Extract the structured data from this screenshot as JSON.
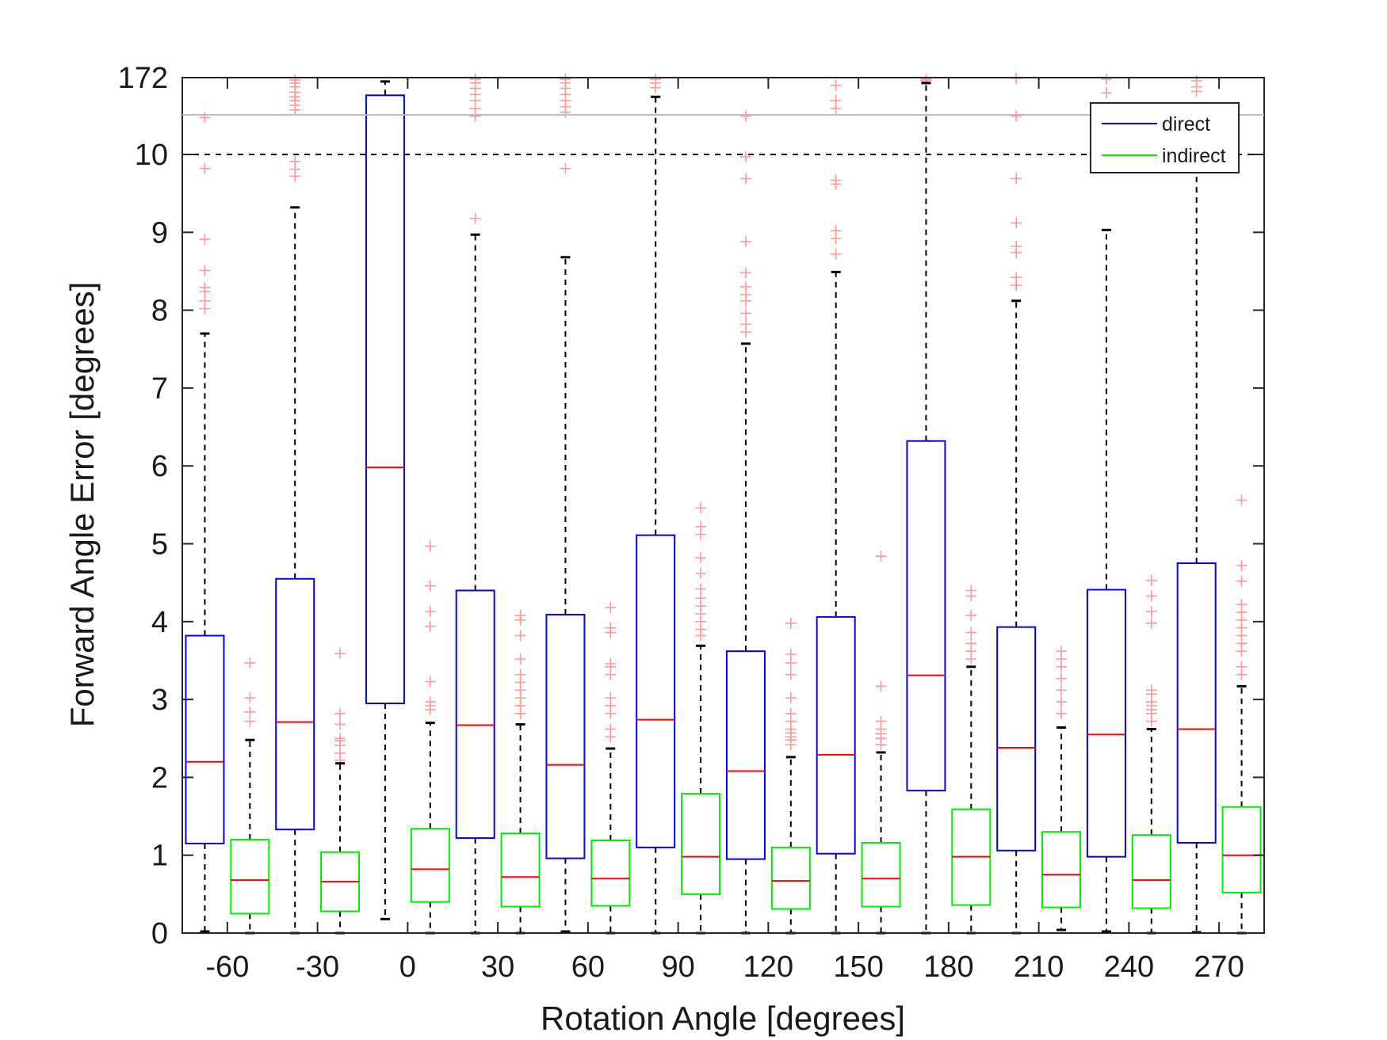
{
  "chart_data": {
    "type": "box",
    "xlabel": "Rotation Angle [degrees]",
    "ylabel": "Forward Angle Error [degrees]",
    "x_categories": [
      "-60",
      "-30",
      "0",
      "30",
      "60",
      "90",
      "120",
      "150",
      "180",
      "210",
      "240",
      "270"
    ],
    "y_ticks": [
      "0",
      "1",
      "2",
      "3",
      "4",
      "5",
      "6",
      "7",
      "8",
      "9",
      "10",
      "172"
    ],
    "y_scale_note": "linear 0-10, compressed break region 10-172",
    "threshold_line": 10,
    "legend": {
      "position": "top-right",
      "entries": [
        "direct",
        "indirect"
      ]
    },
    "colors": {
      "direct": "#0000ff",
      "indirect": "#00ee00",
      "median": "#ff0000",
      "whisker": "#000000",
      "outlier": "#ff9999",
      "break_line": "#bdbdbd"
    },
    "series": [
      {
        "name": "direct",
        "stats": [
          {
            "q1": 1.15,
            "median": 2.2,
            "q3": 3.82,
            "whisker_low": 0.02,
            "whisker_high": 7.7
          },
          {
            "q1": 1.33,
            "median": 2.71,
            "q3": 4.55,
            "whisker_low": 0.0,
            "whisker_high": 9.32
          },
          {
            "q1": 2.95,
            "median": 5.98,
            "q3": 10.77,
            "whisker_low": 0.18,
            "whisker_high": 10.95
          },
          {
            "q1": 1.22,
            "median": 2.67,
            "q3": 4.4,
            "whisker_low": 0.0,
            "whisker_high": 8.97
          },
          {
            "q1": 0.96,
            "median": 2.16,
            "q3": 4.09,
            "whisker_low": 0.02,
            "whisker_high": 8.68
          },
          {
            "q1": 1.1,
            "median": 2.74,
            "q3": 5.11,
            "whisker_low": 0.0,
            "whisker_high": 10.75
          },
          {
            "q1": 0.95,
            "median": 2.08,
            "q3": 3.62,
            "whisker_low": 0.0,
            "whisker_high": 7.57
          },
          {
            "q1": 1.02,
            "median": 2.29,
            "q3": 4.06,
            "whisker_low": 0.0,
            "whisker_high": 8.49
          },
          {
            "q1": 1.83,
            "median": 3.31,
            "q3": 6.32,
            "whisker_low": 0.0,
            "whisker_high": 10.93
          },
          {
            "q1": 1.06,
            "median": 2.38,
            "q3": 3.93,
            "whisker_low": 0.0,
            "whisker_high": 8.12
          },
          {
            "q1": 0.98,
            "median": 2.55,
            "q3": 4.41,
            "whisker_low": 0.02,
            "whisker_high": 9.03
          },
          {
            "q1": 1.16,
            "median": 2.62,
            "q3": 4.75,
            "whisker_low": 0.01,
            "whisker_high": 10.0
          }
        ]
      },
      {
        "name": "indirect",
        "stats": [
          {
            "q1": 0.25,
            "median": 0.68,
            "q3": 1.2,
            "whisker_low": 0.0,
            "whisker_high": 2.48
          },
          {
            "q1": 0.28,
            "median": 0.66,
            "q3": 1.04,
            "whisker_low": 0.0,
            "whisker_high": 2.18
          },
          {
            "q1": 0.4,
            "median": 0.82,
            "q3": 1.34,
            "whisker_low": 0.0,
            "whisker_high": 2.7
          },
          {
            "q1": 0.34,
            "median": 0.72,
            "q3": 1.28,
            "whisker_low": 0.0,
            "whisker_high": 2.68
          },
          {
            "q1": 0.35,
            "median": 0.7,
            "q3": 1.19,
            "whisker_low": 0.0,
            "whisker_high": 2.37
          },
          {
            "q1": 0.5,
            "median": 0.98,
            "q3": 1.79,
            "whisker_low": 0.0,
            "whisker_high": 3.69
          },
          {
            "q1": 0.31,
            "median": 0.67,
            "q3": 1.1,
            "whisker_low": 0.0,
            "whisker_high": 2.26
          },
          {
            "q1": 0.34,
            "median": 0.7,
            "q3": 1.16,
            "whisker_low": 0.0,
            "whisker_high": 2.32
          },
          {
            "q1": 0.36,
            "median": 0.98,
            "q3": 1.59,
            "whisker_low": 0.0,
            "whisker_high": 3.42
          },
          {
            "q1": 0.33,
            "median": 0.75,
            "q3": 1.3,
            "whisker_low": 0.04,
            "whisker_high": 2.64
          },
          {
            "q1": 0.32,
            "median": 0.68,
            "q3": 1.26,
            "whisker_low": 0.0,
            "whisker_high": 2.62
          },
          {
            "q1": 0.52,
            "median": 1.0,
            "q3": 1.62,
            "whisker_low": 0.0,
            "whisker_high": 3.17
          }
        ]
      }
    ],
    "outliers": [
      {
        "series": "direct",
        "category": "-60",
        "values": [
          8.02,
          8.12,
          8.24,
          8.29,
          8.51,
          8.91,
          9.82,
          10.48
        ]
      },
      {
        "series": "indirect",
        "category": "-60",
        "values": [
          2.72,
          2.84,
          3.02,
          3.47
        ]
      },
      {
        "series": "direct",
        "category": "-30",
        "values": [
          9.72,
          9.81,
          9.91,
          10.58,
          10.64,
          10.7,
          10.75,
          10.81,
          10.88,
          10.93,
          10.97
        ]
      },
      {
        "series": "indirect",
        "category": "-30",
        "values": [
          2.22,
          2.31,
          2.41,
          2.47,
          2.5,
          2.68,
          2.82,
          3.59
        ]
      },
      {
        "series": "indirect",
        "category": "0",
        "values": [
          2.87,
          2.92,
          2.97,
          3.23,
          3.94,
          4.13,
          4.46,
          4.97
        ]
      },
      {
        "series": "direct",
        "category": "30",
        "values": [
          9.18,
          10.5,
          10.6,
          10.7,
          10.78,
          10.86,
          10.93,
          10.98
        ]
      },
      {
        "series": "indirect",
        "category": "30",
        "values": [
          2.82,
          2.92,
          3.02,
          3.12,
          3.22,
          3.32,
          3.52,
          3.82,
          4.02,
          4.08
        ]
      },
      {
        "series": "direct",
        "category": "60",
        "values": [
          9.82,
          10.55,
          10.62,
          10.7,
          10.78,
          10.86,
          10.93,
          10.98
        ]
      },
      {
        "series": "indirect",
        "category": "60",
        "values": [
          2.52,
          2.62,
          2.82,
          2.92,
          3.02,
          3.32,
          3.42,
          3.46,
          3.86,
          3.92,
          4.18
        ]
      },
      {
        "series": "direct",
        "category": "90",
        "values": [
          10.87,
          10.93,
          10.98
        ]
      },
      {
        "series": "indirect",
        "category": "90",
        "values": [
          3.82,
          3.9,
          4.0,
          4.1,
          4.2,
          4.3,
          4.42,
          4.62,
          4.82,
          5.12,
          5.22,
          5.46
        ]
      },
      {
        "series": "direct",
        "category": "120",
        "values": [
          7.72,
          7.82,
          7.96,
          8.12,
          8.2,
          8.3,
          8.48,
          8.88,
          9.69,
          9.97,
          10.5
        ]
      },
      {
        "series": "indirect",
        "category": "120",
        "values": [
          2.42,
          2.48,
          2.52,
          2.57,
          2.62,
          2.72,
          2.82,
          3.02,
          3.32,
          3.47,
          3.58,
          3.98
        ]
      },
      {
        "series": "direct",
        "category": "150",
        "values": [
          8.72,
          8.92,
          9.02,
          9.62,
          9.67,
          10.6,
          10.7,
          10.9
        ]
      },
      {
        "series": "indirect",
        "category": "150",
        "values": [
          2.42,
          2.5,
          2.56,
          2.62,
          2.72,
          3.17,
          4.84
        ]
      },
      {
        "series": "direct",
        "category": "180",
        "values": [
          10.96,
          10.98
        ]
      },
      {
        "series": "indirect",
        "category": "180",
        "values": [
          3.52,
          3.62,
          3.72,
          3.86,
          4.08,
          4.33,
          4.4
        ]
      },
      {
        "series": "direct",
        "category": "210",
        "values": [
          8.32,
          8.42,
          8.74,
          8.82,
          9.12,
          9.69,
          10.5,
          10.99
        ]
      },
      {
        "series": "indirect",
        "category": "210",
        "values": [
          2.82,
          2.97,
          3.12,
          3.27,
          3.42,
          3.52,
          3.62
        ]
      },
      {
        "series": "direct",
        "category": "240",
        "values": [
          10.8,
          10.98
        ]
      },
      {
        "series": "indirect",
        "category": "240",
        "values": [
          2.72,
          2.82,
          2.87,
          2.92,
          2.97,
          3.07,
          3.12,
          3.98,
          4.13,
          4.33,
          4.53
        ]
      },
      {
        "series": "direct",
        "category": "270",
        "values": [
          10.82,
          10.88,
          10.96
        ]
      },
      {
        "series": "indirect",
        "category": "270",
        "values": [
          3.32,
          3.42,
          3.62,
          3.72,
          3.82,
          3.92,
          4.02,
          4.12,
          4.22,
          4.52,
          4.72,
          5.56
        ]
      }
    ]
  }
}
